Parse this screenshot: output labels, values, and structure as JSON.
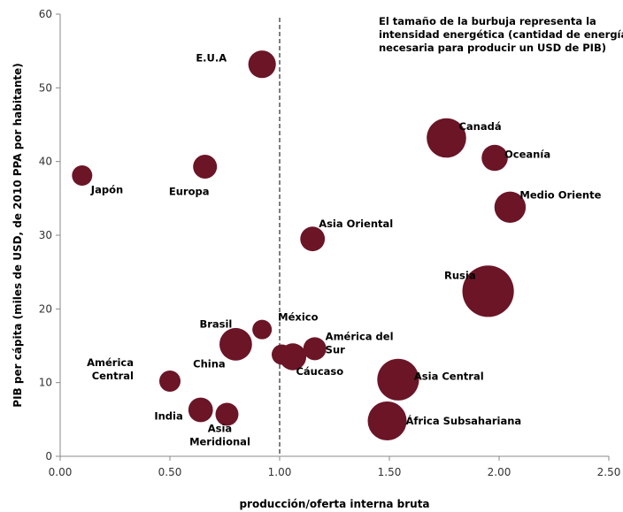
{
  "chart_data": {
    "type": "scatter",
    "subtype": "bubble",
    "xlabel": "producción/oferta interna bruta",
    "ylabel": "PIB per cápita (miles de USD, de 2010 PPA por habitante)",
    "xlim": [
      0,
      2.5
    ],
    "ylim": [
      0,
      60
    ],
    "x_ticks": [
      "0.00",
      "0.50",
      "1.00",
      "1.50",
      "2.00",
      "2.50"
    ],
    "y_ticks": [
      "0",
      "10",
      "20",
      "30",
      "40",
      "50",
      "60"
    ],
    "grid": false,
    "reference_line": {
      "x": 1.0,
      "style": "dashed"
    },
    "annotation": [
      "El tamaño de la burbuja representa la",
      "intensidad energética (cantidad de energía",
      "necesaria para producir un USD de PIB)"
    ],
    "bubble_color": "#6B1527",
    "points": [
      {
        "label": [
          "E.U.A"
        ],
        "x": 0.92,
        "y": 53.2,
        "size": 2.0
      },
      {
        "label": [
          "Japón"
        ],
        "x": 0.1,
        "y": 38.1,
        "size": 1.1
      },
      {
        "label": [
          "Europa"
        ],
        "x": 0.66,
        "y": 39.3,
        "size": 1.5
      },
      {
        "label": [
          "Canadá"
        ],
        "x": 1.76,
        "y": 43.2,
        "size": 4.1
      },
      {
        "label": [
          "Oceanía"
        ],
        "x": 1.98,
        "y": 40.5,
        "size": 1.8
      },
      {
        "label": [
          "Medio Oriente"
        ],
        "x": 2.05,
        "y": 33.8,
        "size": 2.6
      },
      {
        "label": [
          "Asia Oriental"
        ],
        "x": 1.15,
        "y": 29.5,
        "size": 1.6
      },
      {
        "label": [
          "Rusia"
        ],
        "x": 1.95,
        "y": 22.4,
        "size": 7.0
      },
      {
        "label": [
          "Brasil"
        ],
        "x": 0.8,
        "y": 15.2,
        "size": 2.8
      },
      {
        "label": [
          "México"
        ],
        "x": 0.92,
        "y": 17.2,
        "size": 1.0
      },
      {
        "label": [
          "América del",
          "Sur"
        ],
        "x": 1.16,
        "y": 14.6,
        "size": 1.4
      },
      {
        "label": [
          "China"
        ],
        "x": 0.8,
        "y": 15.2,
        "size": 0
      },
      {
        "label": [
          "Cáucaso"
        ],
        "x": 1.01,
        "y": 13.8,
        "size": 1.1
      },
      {
        "label": [],
        "x": 1.06,
        "y": 13.5,
        "size": 1.9
      },
      {
        "label": [
          "América",
          "Central"
        ],
        "x": 0.5,
        "y": 10.2,
        "size": 1.2
      },
      {
        "label": [
          "Asia Central"
        ],
        "x": 1.54,
        "y": 10.4,
        "size": 4.6
      },
      {
        "label": [
          "India"
        ],
        "x": 0.64,
        "y": 6.3,
        "size": 1.6
      },
      {
        "label": [
          "Asia",
          "Meridional"
        ],
        "x": 0.76,
        "y": 5.7,
        "size": 1.4
      },
      {
        "label": [
          "África Subsahariana"
        ],
        "x": 1.49,
        "y": 4.8,
        "size": 4.0
      }
    ]
  }
}
